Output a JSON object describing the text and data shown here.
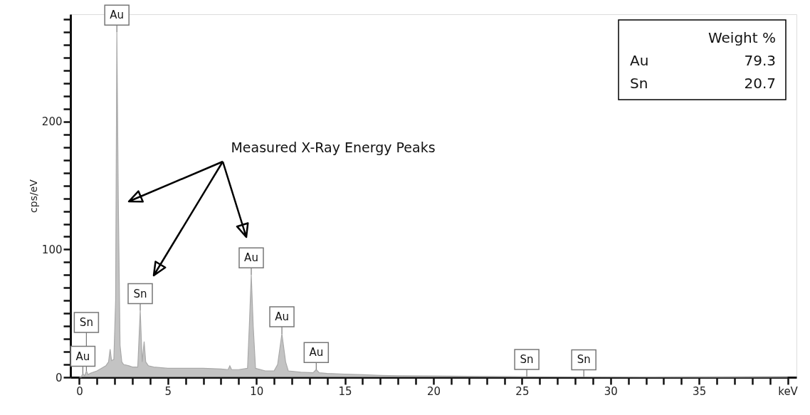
{
  "chart_data": {
    "type": "area",
    "ylabel": "cps/eV",
    "x": [
      0,
      0.1,
      0.2,
      0.3,
      0.4,
      0.5,
      0.6,
      1.0,
      1.5,
      1.65,
      1.74,
      1.82,
      1.95,
      2.05,
      2.12,
      2.2,
      2.3,
      2.4,
      2.5,
      2.8,
      3.0,
      3.3,
      3.44,
      3.55,
      3.66,
      3.75,
      3.9,
      4.2,
      5,
      6,
      7,
      8,
      8.4,
      8.5,
      8.6,
      9,
      9.5,
      9.6,
      9.71,
      9.82,
      9.95,
      10.5,
      11.0,
      11.2,
      11.44,
      11.65,
      11.8,
      12.5,
      13.2,
      13.38,
      13.55,
      14,
      15,
      16,
      17,
      18,
      20,
      22,
      25,
      28,
      32,
      36,
      40
    ],
    "series": [
      {
        "color": "#a9a9a9",
        "values": [
          0,
          0,
          3,
          1,
          5,
          2,
          3,
          5,
          9,
          12,
          22,
          13,
          14,
          60,
          270,
          140,
          25,
          12,
          10,
          9,
          8,
          8,
          52,
          12,
          28,
          12,
          9,
          8,
          7,
          7,
          7,
          6.5,
          6,
          9,
          6,
          6,
          7,
          40,
          80,
          40,
          7,
          5,
          5,
          10,
          34,
          12,
          5,
          4,
          3.5,
          6,
          3.5,
          3,
          2.5,
          2,
          1.5,
          1.2,
          1,
          0.8,
          0.5,
          0.3,
          0.2,
          0.1,
          0
        ]
      }
    ],
    "xlim": [
      -0.5,
      40.5
    ],
    "ylim": [
      0,
      284
    ],
    "xticks": [
      0,
      {
        "value": 1,
        "label": null
      },
      {
        "value": 2,
        "label": null
      },
      {
        "value": 3,
        "label": null
      },
      {
        "value": 4,
        "label": null
      },
      5,
      {
        "value": 6,
        "label": null
      },
      {
        "value": 7,
        "label": null
      },
      {
        "value": 8,
        "label": null
      },
      {
        "value": 9,
        "label": null
      },
      10,
      {
        "value": 11,
        "label": null
      },
      {
        "value": 12,
        "label": null
      },
      {
        "value": 13,
        "label": null
      },
      {
        "value": 14,
        "label": null
      },
      15,
      {
        "value": 16,
        "label": null
      },
      {
        "value": 17,
        "label": null
      },
      {
        "value": 18,
        "label": null
      },
      {
        "value": 19,
        "label": null
      },
      20,
      {
        "value": 21,
        "label": null
      },
      {
        "value": 22,
        "label": null
      },
      {
        "value": 23,
        "label": null
      },
      {
        "value": 24,
        "label": null
      },
      25,
      {
        "value": 26,
        "label": null
      },
      {
        "value": 27,
        "label": null
      },
      {
        "value": 28,
        "label": null
      },
      {
        "value": 29,
        "label": null
      },
      30,
      {
        "value": 31,
        "label": null
      },
      {
        "value": 32,
        "label": null
      },
      {
        "value": 33,
        "label": null
      },
      {
        "value": 34,
        "label": null
      },
      35,
      {
        "value": 36,
        "label": null
      },
      {
        "value": 37,
        "label": null
      },
      {
        "value": 38,
        "label": null
      },
      {
        "value": 39,
        "label": null
      },
      {
        "value": 40,
        "label": "keV"
      }
    ],
    "yticks": [
      0,
      {
        "value": 10,
        "label": null
      },
      {
        "value": 20,
        "label": null
      },
      {
        "value": 30,
        "label": null
      },
      {
        "value": 40,
        "label": null
      },
      {
        "value": 50,
        "label": null
      },
      {
        "value": 60,
        "label": null
      },
      {
        "value": 70,
        "label": null
      },
      {
        "value": 80,
        "label": null
      },
      {
        "value": 90,
        "label": null
      },
      100,
      {
        "value": 110,
        "label": null
      },
      {
        "value": 120,
        "label": null
      },
      {
        "value": 130,
        "label": null
      },
      {
        "value": 140,
        "label": null
      },
      {
        "value": 150,
        "label": null
      },
      {
        "value": 160,
        "label": null
      },
      {
        "value": 170,
        "label": null
      },
      {
        "value": 180,
        "label": null
      },
      {
        "value": 190,
        "label": null
      },
      200,
      {
        "value": 210,
        "label": null
      },
      {
        "value": 220,
        "label": null
      },
      {
        "value": 230,
        "label": null
      },
      {
        "value": 240,
        "label": null
      },
      {
        "value": 250,
        "label": null
      },
      {
        "value": 260,
        "label": null
      },
      {
        "value": 270,
        "label": null
      },
      {
        "value": 280,
        "label": null
      }
    ],
    "grid": false,
    "legend": false,
    "annotations": [
      "Measured X-Ray Energy Peaks",
      "Weight %",
      "Au",
      "79.3",
      "Sn",
      "20.7",
      {
        "text": "Au",
        "x": 2.12,
        "y": 270
      },
      {
        "text": "Sn",
        "x": 3.44,
        "y": 52
      },
      {
        "text": "Au",
        "x": 9.71,
        "y": 80
      },
      {
        "text": "Au",
        "x": 11.44,
        "y": 34
      },
      {
        "text": "Au",
        "x": 13.38,
        "y": 6
      },
      {
        "text": "Au",
        "x": 0.2,
        "y": 3
      },
      {
        "text": "Sn",
        "x": 0.4,
        "y": 5
      },
      {
        "text": "Sn",
        "x": 25.27,
        "y": 0.5
      },
      {
        "text": "Sn",
        "x": 28.49,
        "y": 0.3
      }
    ]
  }
}
